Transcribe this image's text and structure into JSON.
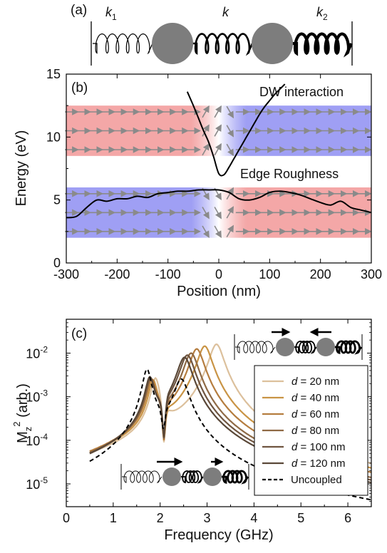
{
  "panels": {
    "a": {
      "label": "(a)",
      "springs": [
        {
          "name": "k",
          "sub": "1"
        },
        {
          "name": "k",
          "sub": ""
        },
        {
          "name": "k",
          "sub": "2"
        }
      ]
    },
    "b": {
      "label": "(b)"
    },
    "c": {
      "label": "(c)"
    }
  },
  "chart_data": [
    {
      "type": "line",
      "panel": "(b)",
      "xlabel": "Position (nm)",
      "ylabel": "Energy (eV)",
      "xlim": [
        -300,
        300
      ],
      "ylim": [
        0,
        15
      ],
      "xticks": [
        -300,
        -200,
        -100,
        0,
        100,
        200,
        300
      ],
      "yticks": [
        0,
        5,
        10,
        15
      ],
      "x_tick_labels": [
        "-300",
        "-200",
        "-100",
        "0",
        "100",
        "200",
        "300"
      ],
      "y_tick_labels": [
        "0",
        "5",
        "10",
        "15"
      ],
      "annotations": [
        "DW interaction",
        "Edge Roughness"
      ],
      "background_bands": [
        {
          "y_range": [
            8.5,
            12.5
          ],
          "left_color": "#f08a8a",
          "right_color": "#7f7ff0",
          "wall_at": 0
        },
        {
          "y_range": [
            2.0,
            6.0
          ],
          "left_color": "#7f7ff0",
          "right_color": "#f08a8a",
          "wall_at": 0
        }
      ],
      "series": [
        {
          "key": "dw",
          "color": "#000000",
          "x": [
            -62,
            -50,
            -40,
            -30,
            -20,
            -10,
            0,
            10,
            20,
            30,
            40,
            50,
            60,
            70,
            80,
            90,
            100,
            110,
            120,
            130
          ],
          "y": [
            13.6,
            12.5,
            11.5,
            10.5,
            9.6,
            8.4,
            7.1,
            7.0,
            7.6,
            8.3,
            9.0,
            9.7,
            10.4,
            11.1,
            11.8,
            12.4,
            12.9,
            13.4,
            13.8,
            14.2
          ]
        },
        {
          "key": "edge",
          "color": "#000000",
          "x": [
            -300,
            -280,
            -260,
            -240,
            -220,
            -200,
            -180,
            -160,
            -140,
            -120,
            -100,
            -80,
            -60,
            -40,
            -20,
            0,
            20,
            40,
            60,
            80,
            100,
            120,
            140,
            160,
            180,
            200,
            220,
            240,
            260,
            280,
            300
          ],
          "y": [
            3.6,
            3.7,
            4.4,
            5.0,
            4.9,
            5.1,
            5.1,
            5.3,
            5.2,
            5.5,
            5.6,
            5.7,
            5.7,
            5.8,
            5.8,
            5.8,
            5.6,
            5.1,
            5.0,
            5.2,
            5.6,
            5.7,
            5.6,
            5.4,
            5.1,
            4.8,
            4.6,
            4.9,
            4.4,
            4.2,
            4.0
          ]
        }
      ]
    },
    {
      "type": "line",
      "panel": "(c)",
      "xlabel": "Frequency (GHz)",
      "ylabel": "M",
      "ylabel_sub": "z",
      "ylabel_sup": "2",
      "ylabel_suffix": " (arb.)",
      "xlim": [
        0,
        6.5
      ],
      "ylim": [
        3e-06,
        0.06
      ],
      "yscale": "log",
      "xticks": [
        0,
        1,
        2,
        3,
        4,
        5,
        6
      ],
      "x_tick_labels": [
        "0",
        "1",
        "2",
        "3",
        "4",
        "5",
        "6"
      ],
      "y_tick_labels": [
        "10",
        "10",
        "10",
        "10"
      ],
      "y_tick_exponents": [
        "-5",
        "-4",
        "-3",
        "-2"
      ],
      "legend_position": "right",
      "legend_prefix": "d",
      "series": [
        {
          "name": "= 20 nm",
          "color": "#dcc09c",
          "f1": 1.9,
          "f2": 3.2,
          "a1": 0.0025,
          "a2": 0.016,
          "dip_f": 2.08,
          "dip_v": 9e-05
        },
        {
          "name": "= 40 nm",
          "color": "#c99445",
          "f1": 1.85,
          "f2": 2.95,
          "a1": 0.0022,
          "a2": 0.0145,
          "dip_f": 2.08,
          "dip_v": 0.0001
        },
        {
          "name": "= 60 nm",
          "color": "#b57d3f",
          "f1": 1.82,
          "f2": 2.78,
          "a1": 0.0023,
          "a2": 0.0125,
          "dip_f": 2.08,
          "dip_v": 0.0001
        },
        {
          "name": "= 80 nm",
          "color": "#8f6a45",
          "f1": 1.8,
          "f2": 2.66,
          "a1": 0.0024,
          "a2": 0.01,
          "dip_f": 2.08,
          "dip_v": 0.00011
        },
        {
          "name": "= 100 nm",
          "color": "#6f5540",
          "f1": 1.79,
          "f2": 2.58,
          "a1": 0.0025,
          "a2": 0.009,
          "dip_f": 2.08,
          "dip_v": 0.00011
        },
        {
          "name": "= 120 nm",
          "color": "#5a4838",
          "f1": 1.78,
          "f2": 2.52,
          "a1": 0.0026,
          "a2": 0.008,
          "dip_f": 2.08,
          "dip_v": 0.00012
        },
        {
          "name": "Uncoupled",
          "color": "#000000",
          "dashed": true,
          "f1": 1.72,
          "f2": 2.45,
          "a1": 0.0042,
          "a2": 0.0025,
          "dip_f": 2.07,
          "dip_v": 0.00018
        }
      ]
    }
  ]
}
